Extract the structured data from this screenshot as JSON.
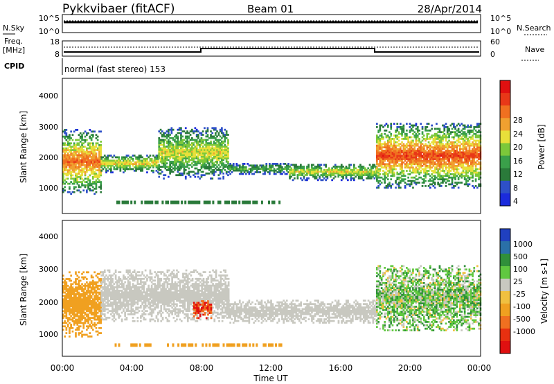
{
  "header": {
    "site": "Pykkvibaer (fitACF)",
    "beam": "Beam 01",
    "date": "28/Apr/2014"
  },
  "noise_panel": {
    "left_label": "N.Sky",
    "left_ticks": [
      "10^5",
      "10^0"
    ],
    "right_label": "N.Search",
    "right_ticks": [
      "10^5",
      "10^0"
    ]
  },
  "freq_panel": {
    "left_label_line1": "Freq.",
    "left_label_line2": "[MHz]",
    "left_ticks": [
      "18",
      "8"
    ],
    "right_label": "Nave",
    "right_ticks": [
      "60",
      "0"
    ]
  },
  "cpid_panel": {
    "label": "CPID",
    "text": "normal (fast stereo) 153"
  },
  "chart_data": [
    {
      "type": "heatmap",
      "name": "power",
      "ylabel": "Slant Range [km]",
      "colorbar_label": "Power [dB]",
      "ylim": [
        180,
        4600
      ],
      "xlim_hours": [
        0,
        24
      ],
      "y_ticks": [
        "1000",
        "2000",
        "3000",
        "4000"
      ],
      "colorbar_ticks": [
        "4",
        "8",
        "12",
        "16",
        "20",
        "24",
        "28"
      ],
      "colorbar_colors": [
        "#1b2bdc",
        "#2e50c8",
        "#2a7a3a",
        "#3aa04a",
        "#7cc83a",
        "#e8e03a",
        "#f0a030",
        "#f07020",
        "#e83818",
        "#e01010"
      ],
      "echo_bands": [
        {
          "t_start": 0.0,
          "t_end": 2.2,
          "range_low": 800,
          "range_high": 2900,
          "peak_db": 26
        },
        {
          "t_start": 2.2,
          "t_end": 5.5,
          "range_low": 1500,
          "range_high": 2100,
          "peak_db": 20
        },
        {
          "t_start": 5.5,
          "t_end": 9.5,
          "range_low": 1300,
          "range_high": 3000,
          "peak_db": 18
        },
        {
          "t_start": 9.5,
          "t_end": 13.0,
          "range_low": 1450,
          "range_high": 1800,
          "peak_db": 12
        },
        {
          "t_start": 13.0,
          "t_end": 18.0,
          "range_low": 1250,
          "range_high": 1800,
          "peak_db": 18
        },
        {
          "t_start": 18.0,
          "t_end": 24.0,
          "range_low": 1000,
          "range_high": 3100,
          "peak_db": 28
        }
      ]
    },
    {
      "type": "heatmap",
      "name": "velocity",
      "ylabel": "Slant Range [km]",
      "xlabel": "Time UT",
      "colorbar_label": "Velocity [m s-1]",
      "ylim": [
        180,
        4600
      ],
      "xlim_hours": [
        0,
        24
      ],
      "y_ticks": [
        "1000",
        "2000",
        "3000",
        "4000"
      ],
      "x_ticks": [
        "00:00",
        "04:00",
        "08:00",
        "12:00",
        "16:00",
        "20:00",
        "00:00"
      ],
      "colorbar_ticks": [
        "1000",
        "500",
        "100",
        "25",
        "-25",
        "-100",
        "-500",
        "-1000"
      ],
      "colorbar_colors": [
        "#2040c0",
        "#2a70a8",
        "#30903a",
        "#60c840",
        "#c8c8c0",
        "#f0c040",
        "#f0a020",
        "#f07020",
        "#e83010",
        "#e01010"
      ],
      "echo_bands": [
        {
          "t_start": 0.0,
          "t_end": 2.2,
          "range_low": 800,
          "range_high": 2900,
          "velocity": -300
        },
        {
          "t_start": 2.2,
          "t_end": 9.5,
          "range_low": 1300,
          "range_high": 3000,
          "velocity": 0
        },
        {
          "t_start": 7.5,
          "t_end": 8.5,
          "range_low": 1400,
          "range_high": 2000,
          "velocity": -1000
        },
        {
          "t_start": 9.5,
          "t_end": 18.0,
          "range_low": 1250,
          "range_high": 2000,
          "velocity": 0
        },
        {
          "t_start": 18.0,
          "t_end": 24.0,
          "range_low": 1000,
          "range_high": 3100,
          "velocity": 50
        }
      ]
    }
  ]
}
